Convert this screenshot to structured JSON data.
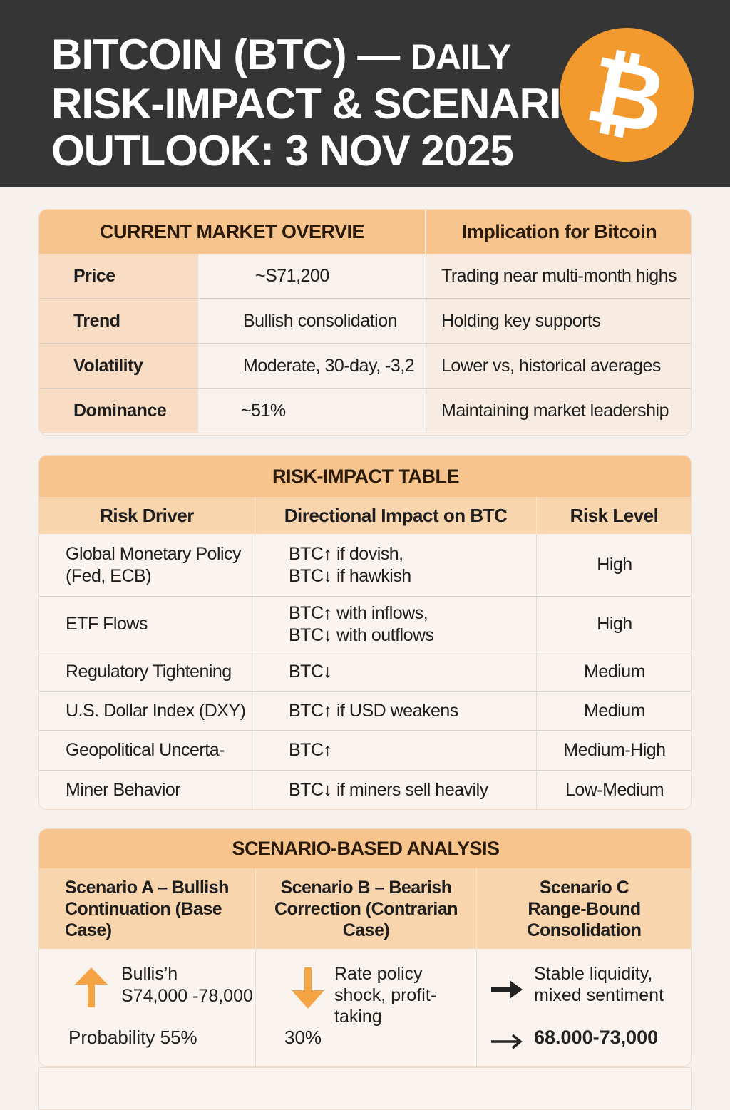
{
  "header": {
    "title_line1a": "BITCOIN (BTC) —",
    "title_line1b": "DAILY",
    "title_line2": "RISK-IMPACT & SCENARIO",
    "title_line3": "OUTLOOK: 3 NOV 2025",
    "logo": "₿"
  },
  "overview": {
    "heading": "CURRENT MARKET OVERVIE",
    "implication_heading": "Implication for Bitcoin",
    "rows": [
      {
        "label": "Price",
        "value": "~S71,200",
        "implication": "Trading near multi-month highs"
      },
      {
        "label": "Trend",
        "value": "Bullish consolidation",
        "implication": "Holding key supports"
      },
      {
        "label": "Volatility",
        "value": "Moderate, 30-day, -3,2",
        "implication": "Lower vs, historical averages"
      },
      {
        "label": "Dominance",
        "value": "~51%",
        "implication": "Maintaining market leadership"
      }
    ]
  },
  "risk": {
    "heading": "RISK-IMPACT TABLE",
    "columns": [
      "Risk Driver",
      "Directional Impact on BTC",
      "Risk Level"
    ],
    "rows": [
      {
        "driver": "Global Monetary Policy (Fed, ECB)",
        "impact1": "BTC↑ if dovish,",
        "impact2": "BTC↓ if hawkish",
        "level": "High"
      },
      {
        "driver": "ETF Flows",
        "impact1": "BTC↑ with inflows,",
        "impact2": "BTC↓ with outflows",
        "level": "High"
      },
      {
        "driver": "Regulatory Tightening",
        "impact1": "BTC↓",
        "impact2": "",
        "level": "Medium"
      },
      {
        "driver": "U.S. Dollar Index (DXY)",
        "impact1": "BTC↑ if USD weakens",
        "impact2": "",
        "level": "Medium"
      },
      {
        "driver": "Geopolitical Uncerta-",
        "impact1": "BTC↑",
        "impact2": "",
        "level": "Medium-High"
      },
      {
        "driver": "Miner Behavior",
        "impact1": "BTC↓ if miners sell heavily",
        "impact2": "",
        "level": "Low-Medium"
      }
    ]
  },
  "scenario": {
    "heading": "SCENARIO-BASED ANALYSIS",
    "a": {
      "title": "Scenario A – Bullish Continuation (Base Case)",
      "text1": "Bullis’h",
      "text2": "S74,000 -78,000",
      "prob": "Probability 55%",
      "icon": "arrow-up",
      "color": "#f5a443"
    },
    "b": {
      "title": "Scenario B – Bearish Correction (Contrarian Case)",
      "text": "Rate policy shock, profit-taking",
      "prob": "30%",
      "icon": "arrow-down",
      "color": "#f5a443"
    },
    "c": {
      "title": "Scenario C Range-Bound Consolidation",
      "text": "Stable liquidity, mixed sentiment",
      "range": "68.000-73,000",
      "icon": "arrow-right"
    }
  }
}
